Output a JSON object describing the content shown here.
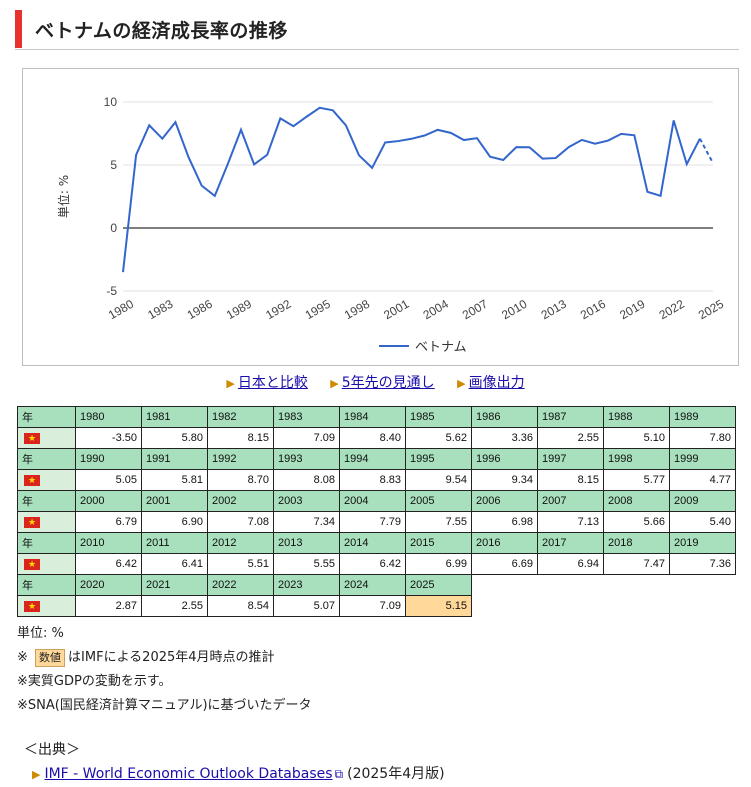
{
  "heading": {
    "title": "ベトナムの経済成長率の推移"
  },
  "chart_data": {
    "type": "line",
    "ylabel": "単位: %",
    "ylim": [
      -5,
      10
    ],
    "yticks": [
      10,
      5,
      0,
      -5
    ],
    "xticks": [
      "1980",
      "1983",
      "1986",
      "1989",
      "1992",
      "1995",
      "1998",
      "2001",
      "2004",
      "2007",
      "2010",
      "2013",
      "2016",
      "2019",
      "2022",
      "2025"
    ],
    "x": [
      1980,
      1981,
      1982,
      1983,
      1984,
      1985,
      1986,
      1987,
      1988,
      1989,
      1990,
      1991,
      1992,
      1993,
      1994,
      1995,
      1996,
      1997,
      1998,
      1999,
      2000,
      2001,
      2002,
      2003,
      2004,
      2005,
      2006,
      2007,
      2008,
      2009,
      2010,
      2011,
      2012,
      2013,
      2014,
      2015,
      2016,
      2017,
      2018,
      2019,
      2020,
      2021,
      2022,
      2023,
      2024,
      2025
    ],
    "series": [
      {
        "name": "ベトナム",
        "color": "#3366cc",
        "values": [
          -3.5,
          5.8,
          8.15,
          7.09,
          8.4,
          5.62,
          3.36,
          2.55,
          5.1,
          7.8,
          5.05,
          5.81,
          8.7,
          8.08,
          8.83,
          9.54,
          9.34,
          8.15,
          5.77,
          4.77,
          6.79,
          6.9,
          7.08,
          7.34,
          7.79,
          7.55,
          6.98,
          7.13,
          5.66,
          5.4,
          6.42,
          6.41,
          5.51,
          5.55,
          6.42,
          6.99,
          6.69,
          6.94,
          7.47,
          7.36,
          2.87,
          2.55,
          8.54,
          5.07,
          7.09,
          5.15
        ],
        "projected_from": 2025
      }
    ],
    "legend": "bottom",
    "grid": true
  },
  "links": [
    {
      "label": "日本と比較"
    },
    {
      "label": "5年先の見通し"
    },
    {
      "label": "画像出力"
    }
  ],
  "table": {
    "year_label": "年",
    "rows": [
      {
        "years": [
          "1980",
          "1981",
          "1982",
          "1983",
          "1984",
          "1985",
          "1986",
          "1987",
          "1988",
          "1989"
        ],
        "values": [
          "-3.50",
          "5.80",
          "8.15",
          "7.09",
          "8.40",
          "5.62",
          "3.36",
          "2.55",
          "5.10",
          "7.80"
        ]
      },
      {
        "years": [
          "1990",
          "1991",
          "1992",
          "1993",
          "1994",
          "1995",
          "1996",
          "1997",
          "1998",
          "1999"
        ],
        "values": [
          "5.05",
          "5.81",
          "8.70",
          "8.08",
          "8.83",
          "9.54",
          "9.34",
          "8.15",
          "5.77",
          "4.77"
        ]
      },
      {
        "years": [
          "2000",
          "2001",
          "2002",
          "2003",
          "2004",
          "2005",
          "2006",
          "2007",
          "2008",
          "2009"
        ],
        "values": [
          "6.79",
          "6.90",
          "7.08",
          "7.34",
          "7.79",
          "7.55",
          "6.98",
          "7.13",
          "5.66",
          "5.40"
        ]
      },
      {
        "years": [
          "2010",
          "2011",
          "2012",
          "2013",
          "2014",
          "2015",
          "2016",
          "2017",
          "2018",
          "2019"
        ],
        "values": [
          "6.42",
          "6.41",
          "5.51",
          "5.55",
          "6.42",
          "6.99",
          "6.69",
          "6.94",
          "7.47",
          "7.36"
        ]
      },
      {
        "years": [
          "2020",
          "2021",
          "2022",
          "2023",
          "2024",
          "2025"
        ],
        "values": [
          "2.87",
          "2.55",
          "8.54",
          "5.07",
          "7.09",
          "5.15"
        ]
      }
    ],
    "projected_year": "2025"
  },
  "notes": {
    "unit": "単位: %",
    "note1_prefix": "※",
    "note1_badge": "数値",
    "note1_text": "はIMFによる2025年4月時点の推計",
    "note2": "※実質GDPの変動を示す。",
    "note3": "※SNA(国民経済計算マニュアル)に基づいたデータ"
  },
  "source": {
    "heading": "＜出典＞",
    "link": "IMF - World Economic Outlook Databases",
    "suffix": "(2025年4月版)"
  }
}
